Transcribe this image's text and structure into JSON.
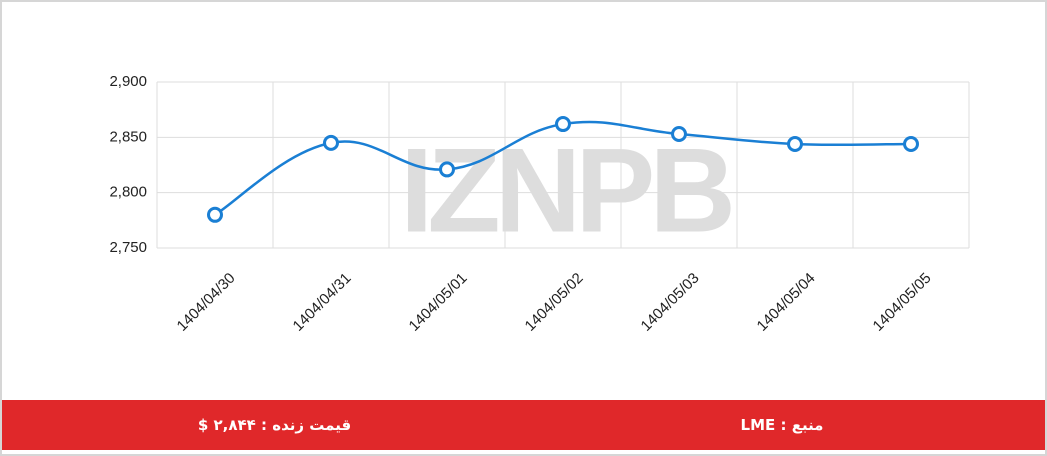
{
  "chart_data": {
    "type": "line",
    "watermark": "IZNPB",
    "categories": [
      "1404/04/30",
      "1404/04/31",
      "1404/05/01",
      "1404/05/02",
      "1404/05/03",
      "1404/05/04",
      "1404/05/05"
    ],
    "series": [
      {
        "name": null,
        "color": "#1a7fd4",
        "values": [
          2780,
          2845,
          2821,
          2862,
          2853,
          2844,
          2844
        ]
      }
    ],
    "ylim": [
      2750,
      2900
    ],
    "yticks": [
      {
        "value": 2750,
        "label": "2,750"
      },
      {
        "value": 2800,
        "label": "2,800"
      },
      {
        "value": 2850,
        "label": "2,850"
      },
      {
        "value": 2900,
        "label": "2,900"
      }
    ],
    "grid": true
  },
  "footer": {
    "live_price": "قیمت زنده : ۲,۸۴۴ $",
    "source": "منبع : LME"
  }
}
